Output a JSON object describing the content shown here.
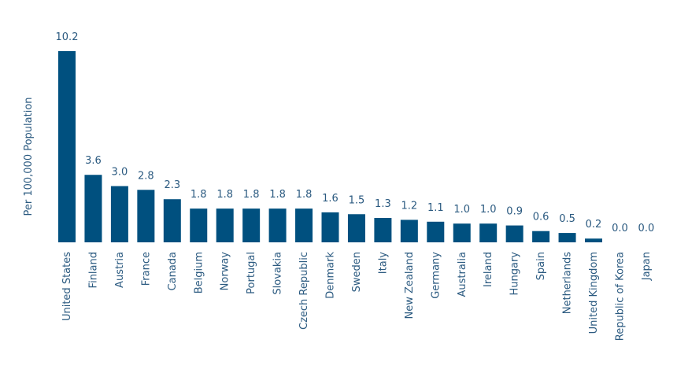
{
  "chart_data": {
    "type": "bar",
    "title": "",
    "xlabel": "",
    "ylabel": "Per 100,000 Population",
    "ylim": [
      0,
      10.2
    ],
    "grid": false,
    "legend": "none",
    "bar_color": "#00507f",
    "text_color": "#2b5a80",
    "categories": [
      "United States",
      "Finland",
      "Austria",
      "France",
      "Canada",
      "Belgium",
      "Norway",
      "Portugal",
      "Slovakia",
      "Czech Republic",
      "Denmark",
      "Sweden",
      "Italy",
      "New Zealand",
      "Germany",
      "Australia",
      "Ireland",
      "Hungary",
      "Spain",
      "Netherlands",
      "United Kingdom",
      "Republic of Korea",
      "Japan"
    ],
    "values": [
      10.2,
      3.6,
      3.0,
      2.8,
      2.3,
      1.8,
      1.8,
      1.8,
      1.8,
      1.8,
      1.6,
      1.5,
      1.3,
      1.2,
      1.1,
      1.0,
      1.0,
      0.9,
      0.6,
      0.5,
      0.2,
      0.0,
      0.0
    ],
    "value_labels": [
      "10.2",
      "3.6",
      "3.0",
      "2.8",
      "2.3",
      "1.8",
      "1.8",
      "1.8",
      "1.8",
      "1.8",
      "1.6",
      "1.5",
      "1.3",
      "1.2",
      "1.1",
      "1.0",
      "1.0",
      "0.9",
      "0.6",
      "0.5",
      "0.2",
      "0.0",
      "0.0"
    ]
  }
}
